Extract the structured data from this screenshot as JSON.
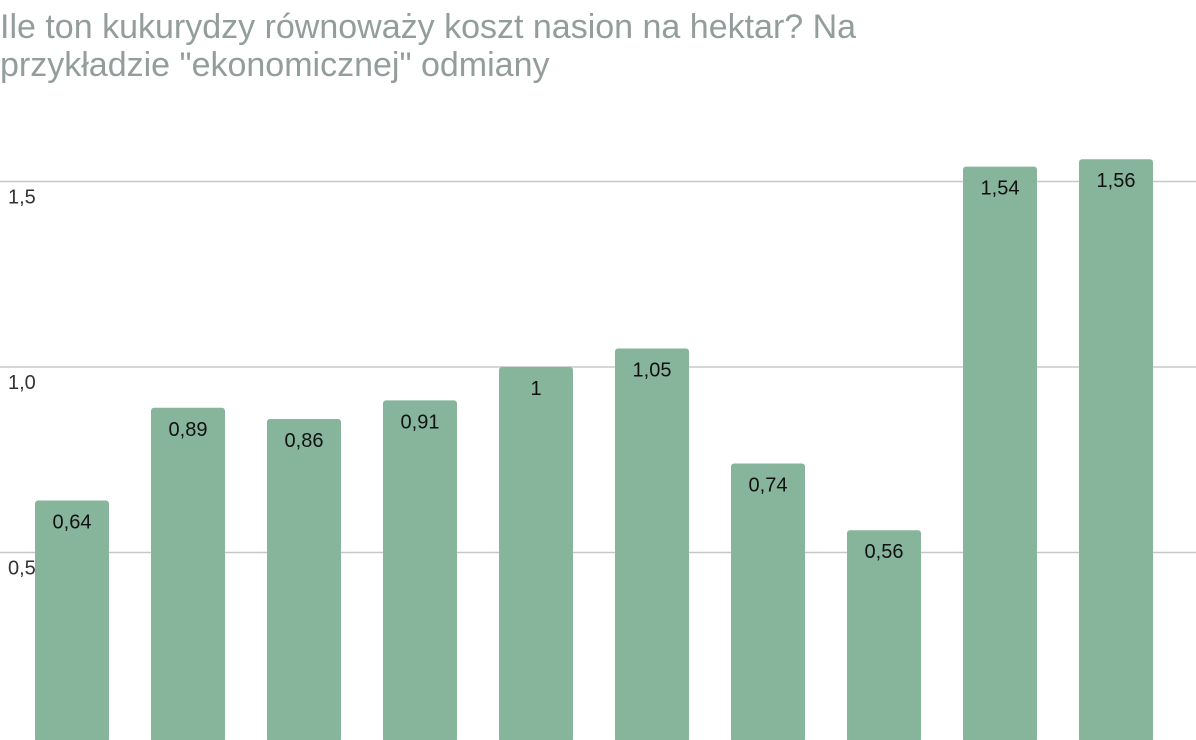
{
  "chart_data": {
    "type": "bar",
    "title": "Ile ton kukurydzy równoważy koszt nasion na hektar? Na przykładzie \"ekonomicznej\" odmiany",
    "title_lines": [
      "Ile ton kukurydzy równoważy koszt nasion na hektar? Na",
      "przykładzie \"ekonomicznej\" odmiany"
    ],
    "values": [
      0.64,
      0.89,
      0.86,
      0.91,
      1,
      1.05,
      0.74,
      0.56,
      1.54,
      1.56
    ],
    "value_labels": [
      "0,64",
      "0,89",
      "0,86",
      "0,91",
      "1",
      "1,05",
      "0,74",
      "0,56",
      "1,54",
      "1,56"
    ],
    "color": "#86b59c",
    "ylim": [
      0,
      2
    ],
    "yticks": [
      {
        "value": 0.5,
        "label": "0,5"
      },
      {
        "value": 1,
        "label": "1,0"
      },
      {
        "value": 1.5,
        "label": "1,5"
      }
    ],
    "grid": true
  }
}
